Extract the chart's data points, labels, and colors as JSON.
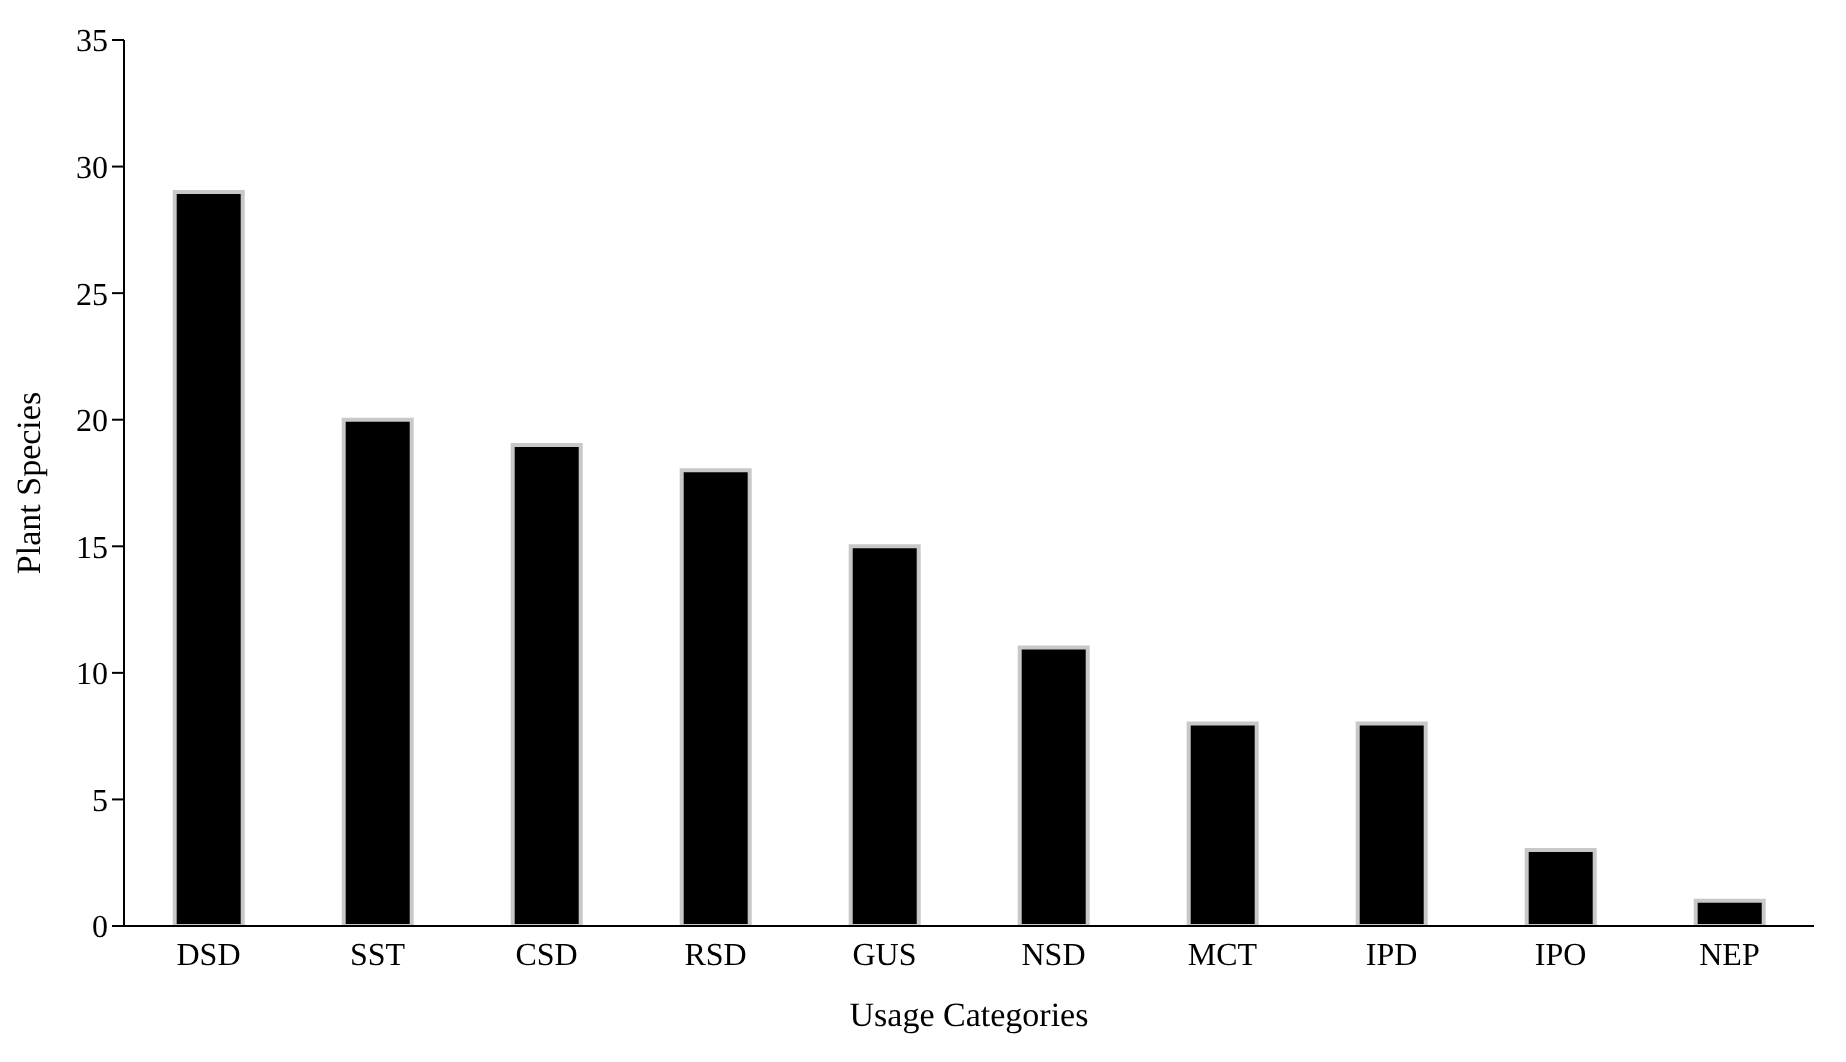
{
  "chart_data": {
    "type": "bar",
    "xlabel": "Usage Categories",
    "ylabel": "Plant Species",
    "categories": [
      "DSD",
      "SST",
      "CSD",
      "RSD",
      "GUS",
      "NSD",
      "MCT",
      "IPD",
      "IPO",
      "NEP"
    ],
    "values": [
      29,
      20,
      19,
      18,
      15,
      11,
      8,
      8,
      3,
      1
    ],
    "color": "#000000",
    "ylim": [
      0,
      35
    ],
    "yticks": [
      0,
      5,
      10,
      15,
      20,
      25,
      30,
      35
    ],
    "grid": false,
    "legend": false
  }
}
